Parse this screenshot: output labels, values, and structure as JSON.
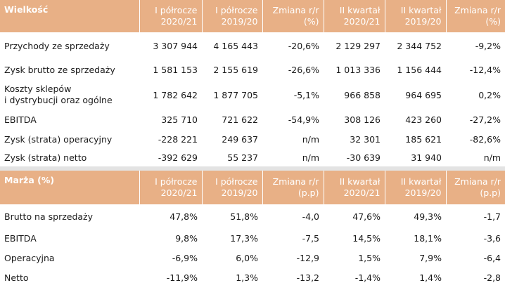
{
  "table1": {
    "header": {
      "label": "Wielkość",
      "cols": [
        {
          "line1": "I półrocze",
          "line2": "2020/21"
        },
        {
          "line1": "I półrocze",
          "line2": "2019/20"
        },
        {
          "line1": "Zmiana r/r",
          "line2": "(%)"
        },
        {
          "line1": "II kwartał",
          "line2": "2020/21"
        },
        {
          "line1": "II kwartał",
          "line2": "2019/20"
        },
        {
          "line1": "Zmiana r/r",
          "line2": "(%)"
        }
      ]
    },
    "rows": [
      {
        "label": "Przychody ze sprzedaży",
        "values": [
          "3 307 944",
          "4 165 443",
          "-20,6%",
          "2 129 297",
          "2 344 752",
          "-9,2%"
        ]
      },
      {
        "label": "Zysk brutto ze sprzedaży",
        "values": [
          "1 581 153",
          "2 155 619",
          "-26,6%",
          "1 013 336",
          "1 156 444",
          "-12,4%"
        ]
      },
      {
        "label_line1": "Koszty sklepów",
        "label_line2": "i dystrybucji oraz ogólne",
        "values": [
          "1 782 642",
          "1 877 705",
          "-5,1%",
          "966 858",
          "964 695",
          "0,2%"
        ]
      },
      {
        "label": "EBITDA",
        "values": [
          "325 710",
          "721 622",
          "-54,9%",
          "308 126",
          "423 260",
          "-27,2%"
        ]
      },
      {
        "label": "Zysk (strata) operacyjny",
        "values": [
          "-228 221",
          "249 637",
          "n/m",
          "32 301",
          "185 621",
          "-82,6%"
        ]
      },
      {
        "label": "Zysk (strata) netto",
        "values": [
          "-392 629",
          "55 237",
          "n/m",
          "-30 639",
          "31 940",
          "n/m"
        ]
      }
    ]
  },
  "table2": {
    "header": {
      "label": "Marża (%)",
      "cols": [
        {
          "line1": "I półrocze",
          "line2": "2020/21"
        },
        {
          "line1": "I półrocze",
          "line2": "2019/20"
        },
        {
          "line1": "Zmiana r/r",
          "line2": "(p.p)"
        },
        {
          "line1": "II kwartał",
          "line2": "2020/21"
        },
        {
          "line1": "II kwartał",
          "line2": "2019/20"
        },
        {
          "line1": "Zmiana r/r",
          "line2": "(p.p)"
        }
      ]
    },
    "rows": [
      {
        "label": "Brutto na sprzedaży",
        "values": [
          "47,8%",
          "51,8%",
          "-4,0",
          "47,6%",
          "49,3%",
          "-1,7"
        ]
      },
      {
        "label": "EBITDA",
        "values": [
          "9,8%",
          "17,3%",
          "-7,5",
          "14,5%",
          "18,1%",
          "-3,6"
        ]
      },
      {
        "label": "Operacyjna",
        "values": [
          "-6,9%",
          "6,0%",
          "-12,9",
          "1,5%",
          "7,9%",
          "-6,4"
        ]
      },
      {
        "label": "Netto",
        "values": [
          "-11,9%",
          "1,3%",
          "-13,2",
          "-1,4%",
          "1,4%",
          "-2,8"
        ]
      }
    ]
  }
}
